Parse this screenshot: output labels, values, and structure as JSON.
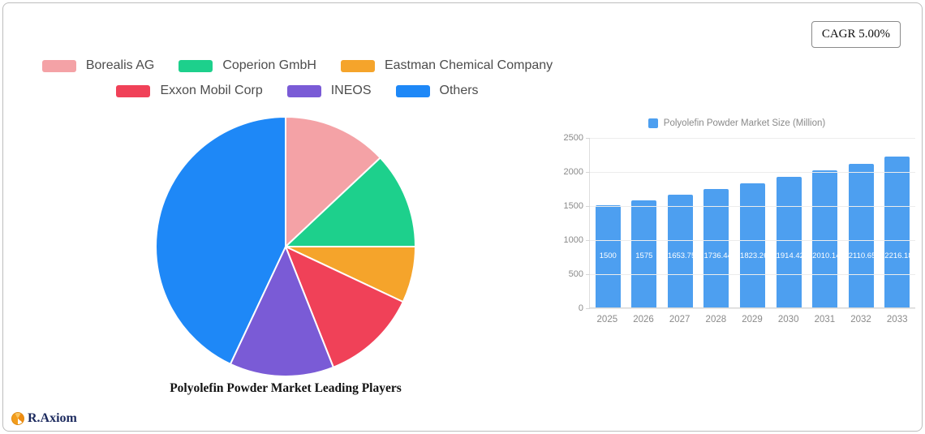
{
  "card": {
    "cagr": "CAGR 5.00%",
    "brand": "R.Axiom"
  },
  "chart_data": [
    {
      "type": "pie",
      "title": "Polyolefin Powder Market Leading Players",
      "labels": [
        "Borealis AG",
        "Coperion GmbH",
        "Eastman Chemical Company",
        "Exxon Mobil Corp",
        "INEOS",
        "Others"
      ],
      "values": [
        13,
        12,
        7,
        12,
        13,
        43
      ],
      "colors": [
        "#f4a2a6",
        "#1dd08c",
        "#f5a42b",
        "#f04158",
        "#7a5bd6",
        "#1e88f7"
      ],
      "legend_position": "top",
      "start_angle_deg": 0,
      "direction": "clockwise"
    },
    {
      "type": "bar",
      "legend": "Polyolefin Powder Market Size (Million)",
      "categories": [
        "2025",
        "2026",
        "2027",
        "2028",
        "2029",
        "2030",
        "2031",
        "2032",
        "2033"
      ],
      "values": [
        1500,
        1575,
        1653.75,
        1736.44,
        1823.26,
        1914.42,
        2010.14,
        2110.65,
        2216.18
      ],
      "value_labels": [
        "1500",
        "1575",
        "1653.75",
        "1736.44",
        "1823.26",
        "1914.42",
        "2010.14",
        "2110.65",
        "2216.18"
      ],
      "bar_color": "#4d9ff0",
      "ylim": [
        0,
        2500
      ],
      "yticks": [
        0,
        500,
        1000,
        1500,
        2000,
        2500
      ],
      "grid": true,
      "legend_position": "top"
    }
  ]
}
